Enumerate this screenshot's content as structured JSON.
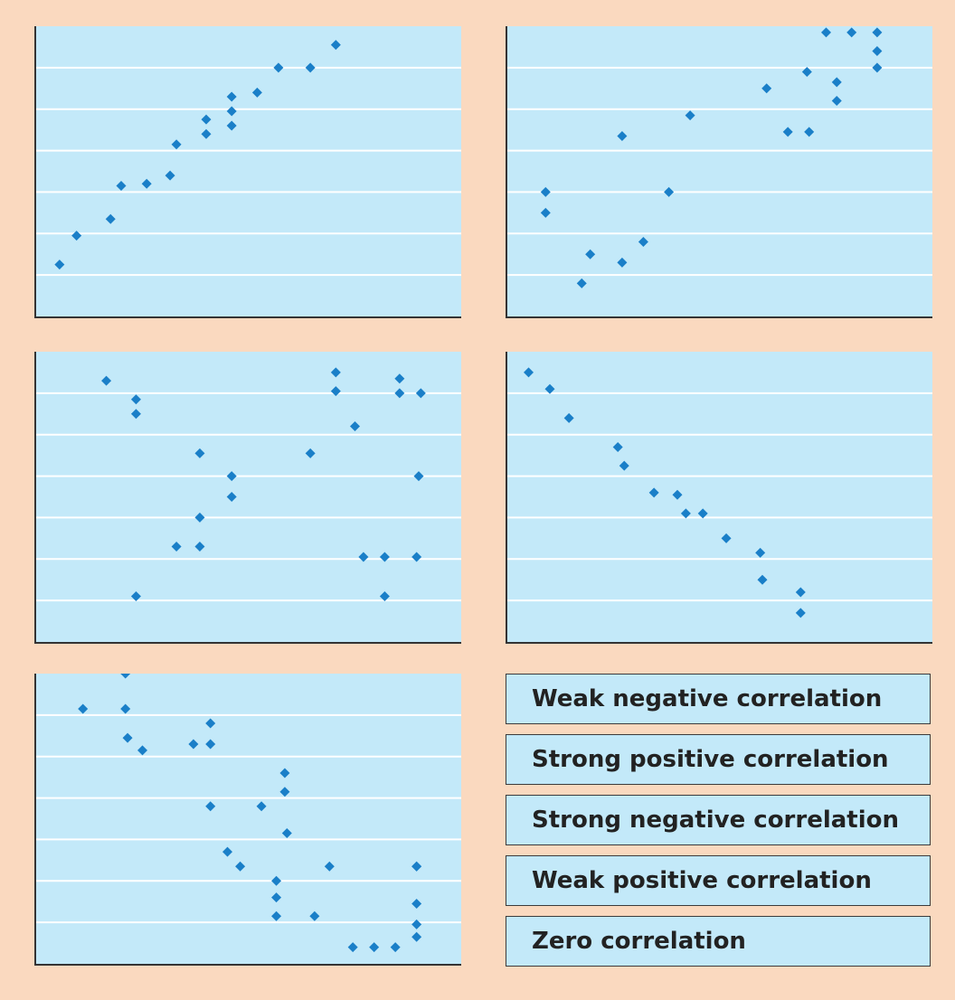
{
  "colors": {
    "background": "#fad9bf",
    "plot_fill": "#c3e9f9",
    "gridline": "#ffffff",
    "axis": "#333333",
    "marker": "#1a7fc8"
  },
  "labels": [
    "Weak negative correlation",
    "Strong positive correlation",
    "Strong negative correlation",
    "Weak positive correlation",
    "Zero correlation"
  ],
  "chart_data": [
    {
      "type": "scatter",
      "xlim": [
        0,
        10
      ],
      "ylim": [
        0,
        7
      ],
      "grid": true,
      "x": [
        0.55,
        0.95,
        1.75,
        2.0,
        2.6,
        3.15,
        3.3,
        4.0,
        4.0,
        4.6,
        4.6,
        4.6,
        5.2,
        5.7,
        6.45,
        7.05
      ],
      "y": [
        1.25,
        1.95,
        2.35,
        3.15,
        3.2,
        3.4,
        4.15,
        4.4,
        4.75,
        4.6,
        4.95,
        5.3,
        5.4,
        6.0,
        6.0,
        6.55
      ]
    },
    {
      "type": "scatter",
      "xlim": [
        0,
        10
      ],
      "ylim": [
        0,
        7
      ],
      "grid": true,
      "x": [
        0.9,
        0.9,
        1.75,
        1.95,
        2.7,
        2.7,
        3.2,
        3.8,
        4.3,
        6.1,
        6.6,
        7.05,
        7.1,
        7.5,
        7.75,
        7.75,
        8.1,
        8.7,
        8.7,
        8.7
      ],
      "y": [
        3.0,
        2.5,
        0.8,
        1.5,
        1.3,
        4.35,
        1.8,
        3.0,
        4.85,
        5.5,
        4.45,
        5.9,
        4.45,
        6.85,
        5.2,
        5.65,
        6.85,
        6.0,
        6.4,
        6.85
      ]
    },
    {
      "type": "scatter",
      "xlim": [
        0,
        10
      ],
      "ylim": [
        0,
        7
      ],
      "grid": true,
      "x": [
        1.65,
        2.35,
        2.35,
        2.35,
        3.3,
        3.85,
        3.85,
        3.85,
        4.6,
        4.6,
        6.45,
        7.05,
        7.05,
        7.5,
        7.7,
        8.2,
        8.2,
        8.55,
        8.55,
        8.95,
        9.0,
        9.05
      ],
      "y": [
        6.3,
        1.1,
        5.5,
        5.85,
        2.3,
        2.3,
        3.0,
        4.55,
        4.0,
        3.5,
        4.55,
        6.5,
        6.05,
        5.2,
        2.05,
        1.1,
        2.05,
        6.0,
        6.35,
        2.05,
        4.0,
        6.0
      ]
    },
    {
      "type": "scatter",
      "xlim": [
        0,
        10
      ],
      "ylim": [
        0,
        7
      ],
      "grid": true,
      "x": [
        0.5,
        1.0,
        1.45,
        2.6,
        2.75,
        3.45,
        4.0,
        4.2,
        4.6,
        5.15,
        5.95,
        6.0,
        6.9,
        6.9
      ],
      "y": [
        6.5,
        6.1,
        5.4,
        4.7,
        4.25,
        3.6,
        3.55,
        3.1,
        3.1,
        2.5,
        2.15,
        1.5,
        1.2,
        0.7
      ]
    },
    {
      "type": "scatter",
      "xlim": [
        0,
        10
      ],
      "ylim": [
        0,
        7
      ],
      "grid": true,
      "x": [
        1.1,
        2.1,
        2.1,
        2.15,
        2.5,
        3.7,
        4.1,
        4.1,
        4.1,
        4.5,
        4.8,
        5.3,
        5.65,
        5.65,
        5.65,
        5.85,
        5.85,
        5.9,
        6.55,
        6.9,
        7.45,
        7.95,
        8.45,
        8.95,
        8.95,
        8.95,
        8.95,
        8.95
      ],
      "y": [
        6.15,
        7.0,
        6.15,
        5.45,
        5.15,
        5.3,
        5.8,
        5.3,
        3.8,
        2.7,
        2.35,
        3.8,
        2.0,
        1.6,
        1.15,
        4.6,
        4.15,
        3.15,
        1.15,
        2.35,
        0.4,
        0.4,
        0.4,
        2.35,
        1.45,
        0.95,
        0.65,
        2.35
      ]
    }
  ]
}
